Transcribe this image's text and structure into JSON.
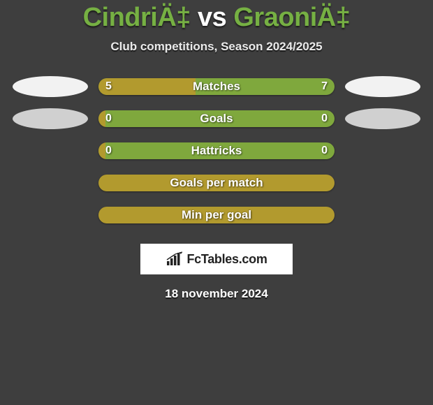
{
  "colors": {
    "background": "#3e3e3e",
    "accent_green": "#76b043",
    "bar_yellow": "#b29a2e",
    "bar_green": "#7fa83d",
    "oval_light": "#f2f2f2",
    "oval_grey": "#d0d0d0",
    "text_white": "#ffffff",
    "text_grey": "#eaeaea",
    "brand_box_bg": "#ffffff",
    "brand_text": "#222222"
  },
  "title": {
    "player_a": "CindriÄ‡",
    "vs": " vs ",
    "player_b": "GraoniÄ‡"
  },
  "subtitle": "Club competitions, Season 2024/2025",
  "stats": [
    {
      "label": "Matches",
      "left_val": "5",
      "right_val": "7",
      "show_ovals": true,
      "oval_left_color": "#f2f2f2",
      "oval_right_color": "#f2f2f2",
      "bar_bg": "#7fa83d",
      "fill_color": "#b29a2e",
      "fill_width_pct": 41
    },
    {
      "label": "Goals",
      "left_val": "0",
      "right_val": "0",
      "show_ovals": true,
      "oval_left_color": "#d0d0d0",
      "oval_right_color": "#d0d0d0",
      "bar_bg": "#7fa83d",
      "fill_color": "#b29a2e",
      "fill_width_pct": 3
    },
    {
      "label": "Hattricks",
      "left_val": "0",
      "right_val": "0",
      "show_ovals": false,
      "bar_bg": "#7fa83d",
      "fill_color": "#b29a2e",
      "fill_width_pct": 3
    },
    {
      "label": "Goals per match",
      "left_val": "",
      "right_val": "",
      "show_ovals": false,
      "bar_bg": "#b29a2e",
      "fill_color": "#b29a2e",
      "fill_width_pct": 0
    },
    {
      "label": "Min per goal",
      "left_val": "",
      "right_val": "",
      "show_ovals": false,
      "bar_bg": "#b29a2e",
      "fill_color": "#b29a2e",
      "fill_width_pct": 0
    }
  ],
  "brand": "FcTables.com",
  "date": "18 november 2024"
}
